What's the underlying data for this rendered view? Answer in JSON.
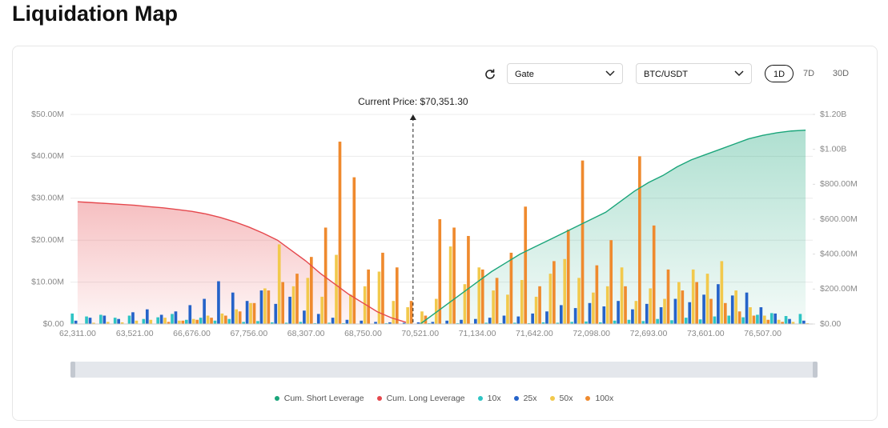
{
  "title": "Liquidation Map",
  "controls": {
    "exchange": "Gate",
    "pair": "BTC/USDT",
    "ranges": [
      "1D",
      "7D",
      "30D"
    ],
    "selected_range": 0
  },
  "chart_data": {
    "type": "bar",
    "annotation": "Current Price: $70,351.30",
    "grid": true,
    "categories": [
      "62,311.00",
      null,
      null,
      null,
      "63,521.00",
      null,
      null,
      null,
      "66,676.00",
      null,
      null,
      null,
      "67,756.00",
      null,
      null,
      null,
      "68,307.00",
      null,
      null,
      null,
      "68,750.00",
      null,
      null,
      null,
      "70,521.00",
      null,
      null,
      null,
      "71,134.00",
      null,
      null,
      null,
      "71,642.00",
      null,
      null,
      null,
      "72,098.00",
      null,
      null,
      null,
      "72,693.00",
      null,
      null,
      null,
      "73,601.00",
      null,
      null,
      null,
      "76,507.00",
      null,
      null,
      null
    ],
    "ylim": [
      0,
      50000000
    ],
    "yticks": [
      {
        "value": 0,
        "label": "$0.00"
      },
      {
        "value": 10000000,
        "label": "$10.00M"
      },
      {
        "value": 20000000,
        "label": "$20.00M"
      },
      {
        "value": 30000000,
        "label": "$30.00M"
      },
      {
        "value": 40000000,
        "label": "$40.00M"
      },
      {
        "value": 50000000,
        "label": "$50.00M"
      }
    ],
    "y2lim": [
      0,
      1200000000
    ],
    "y2ticks": [
      {
        "value": 0,
        "label": "$0.00"
      },
      {
        "value": 200000000,
        "label": "$200.00M"
      },
      {
        "value": 400000000,
        "label": "$400.00M"
      },
      {
        "value": 600000000,
        "label": "$600.00M"
      },
      {
        "value": 800000000,
        "label": "$800.00M"
      },
      {
        "value": 1000000000,
        "label": "$1.00B"
      },
      {
        "value": 1200000000,
        "label": "$1.20B"
      }
    ],
    "series": [
      {
        "name": "Cum. Short Leverage",
        "color": "#1aa57a",
        "axis": "y2",
        "values": [
          null,
          null,
          null,
          null,
          null,
          null,
          null,
          null,
          null,
          null,
          null,
          null,
          null,
          null,
          null,
          null,
          null,
          null,
          null,
          null,
          null,
          null,
          null,
          null,
          0,
          60000000,
          120000000,
          180000000,
          240000000,
          300000000,
          350000000,
          400000000,
          440000000,
          480000000,
          520000000,
          560000000,
          600000000,
          640000000,
          700000000,
          760000000,
          810000000,
          850000000,
          900000000,
          940000000,
          970000000,
          1000000000,
          1030000000,
          1060000000,
          1080000000,
          1095000000,
          1105000000,
          1110000000
        ]
      },
      {
        "name": "Cum. Long Leverage",
        "color": "#e5484d",
        "axis": "y2",
        "values": [
          700000000,
          695000000,
          690000000,
          685000000,
          680000000,
          672000000,
          665000000,
          655000000,
          645000000,
          630000000,
          610000000,
          585000000,
          555000000,
          520000000,
          480000000,
          420000000,
          360000000,
          290000000,
          230000000,
          170000000,
          120000000,
          70000000,
          35000000,
          10000000,
          null,
          null,
          null,
          null,
          null,
          null,
          null,
          null,
          null,
          null,
          null,
          null,
          null,
          null,
          null,
          null,
          null,
          null,
          null,
          null,
          null,
          null,
          null,
          null,
          null,
          null,
          null,
          null
        ]
      },
      {
        "name": "10x",
        "color": "#2ec4c4",
        "values": [
          2500000,
          1800000,
          2200000,
          1500000,
          2000000,
          1200000,
          1600000,
          2400000,
          1000000,
          1500000,
          800000,
          1200000,
          500000,
          700000,
          400000,
          300000,
          500000,
          200000,
          300000,
          200000,
          100000,
          100000,
          200000,
          100000,
          100000,
          200000,
          100000,
          200000,
          100000,
          300000,
          200000,
          300000,
          200000,
          400000,
          300000,
          500000,
          600000,
          400000,
          800000,
          1000000,
          700000,
          1200000,
          900000,
          1500000,
          1100000,
          1800000,
          2000000,
          1600000,
          2200000,
          2600000,
          1900000,
          2400000
        ]
      },
      {
        "name": "25x",
        "color": "#2563c9",
        "values": [
          800000,
          1500000,
          2000000,
          1200000,
          2800000,
          3500000,
          2200000,
          3000000,
          4500000,
          6000000,
          10200000,
          7500000,
          5500000,
          8000000,
          4800000,
          6500000,
          3200000,
          2400000,
          1500000,
          1000000,
          800000,
          500000,
          400000,
          300000,
          400000,
          500000,
          800000,
          1000000,
          1200000,
          1500000,
          2000000,
          1800000,
          2500000,
          3000000,
          4500000,
          3800000,
          5000000,
          4200000,
          5500000,
          3500000,
          4800000,
          4000000,
          6000000,
          5200000,
          7000000,
          9500000,
          6800000,
          7500000,
          4000000,
          2500000,
          1200000,
          800000
        ]
      },
      {
        "name": "50x",
        "color": "#f2c94c",
        "values": [
          0,
          300000,
          500000,
          400000,
          800000,
          1000000,
          1500000,
          800000,
          1200000,
          2000000,
          2500000,
          3500000,
          5000000,
          8500000,
          19000000,
          9000000,
          11000000,
          6500000,
          16500000,
          7000000,
          9000000,
          12500000,
          5500000,
          4000000,
          3000000,
          6000000,
          18500000,
          9500000,
          13500000,
          8000000,
          7000000,
          10500000,
          6500000,
          12000000,
          15500000,
          11000000,
          7500000,
          9000000,
          13500000,
          5500000,
          8500000,
          6000000,
          10000000,
          13000000,
          12000000,
          15000000,
          8000000,
          4000000,
          2000000,
          1000000,
          500000,
          200000
        ]
      },
      {
        "name": "100x",
        "color": "#ef8a2e",
        "values": [
          0,
          0,
          0,
          0,
          0,
          0,
          500000,
          800000,
          1000000,
          1500000,
          2000000,
          3000000,
          5000000,
          8000000,
          10000000,
          12000000,
          16000000,
          23000000,
          43500000,
          35000000,
          13000000,
          17000000,
          13500000,
          5500000,
          2000000,
          25000000,
          23000000,
          21000000,
          13000000,
          11000000,
          17000000,
          28000000,
          9000000,
          15000000,
          22500000,
          39000000,
          14000000,
          20000000,
          9000000,
          40000000,
          23500000,
          13000000,
          8000000,
          10000000,
          6000000,
          5000000,
          3000000,
          2000000,
          1000000,
          500000,
          0,
          0
        ]
      }
    ]
  }
}
